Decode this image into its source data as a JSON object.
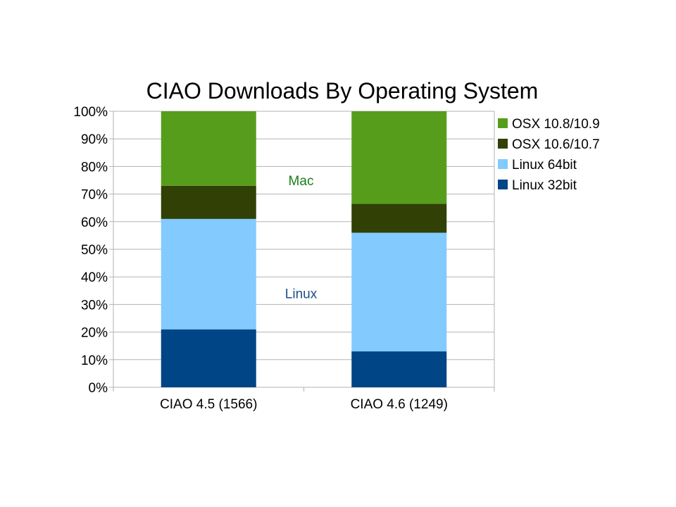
{
  "chart_data": {
    "type": "bar",
    "stacked": true,
    "title": "CIAO Downloads By Operating System",
    "xlabel": "",
    "ylabel": "",
    "categories": [
      "CIAO 4.5 (1566)",
      "CIAO 4.6 (1249)"
    ],
    "series": [
      {
        "name": "Linux 32bit",
        "color": "#004586",
        "values": [
          21,
          13
        ]
      },
      {
        "name": "Linux 64bit",
        "color": "#83caff",
        "values": [
          40,
          43
        ]
      },
      {
        "name": "OSX 10.6/10.7",
        "color": "#314004",
        "values": [
          12,
          10.5
        ]
      },
      {
        "name": "OSX 10.8/10.9",
        "color": "#579d1c",
        "values": [
          27,
          33.5
        ]
      }
    ],
    "ylim": [
      0,
      100
    ],
    "yticks": [
      "0%",
      "10%",
      "20%",
      "30%",
      "40%",
      "50%",
      "60%",
      "70%",
      "80%",
      "90%",
      "100%"
    ],
    "grid": true,
    "legend": "right",
    "legend_order": [
      "OSX 10.8/10.9",
      "OSX 10.6/10.7",
      "Linux 64bit",
      "Linux 32bit"
    ],
    "annotations": [
      {
        "text": "Mac",
        "color": "#1b7d1b",
        "y": 75
      },
      {
        "text": "Linux",
        "color": "#1f4e8c",
        "y": 34
      }
    ]
  }
}
